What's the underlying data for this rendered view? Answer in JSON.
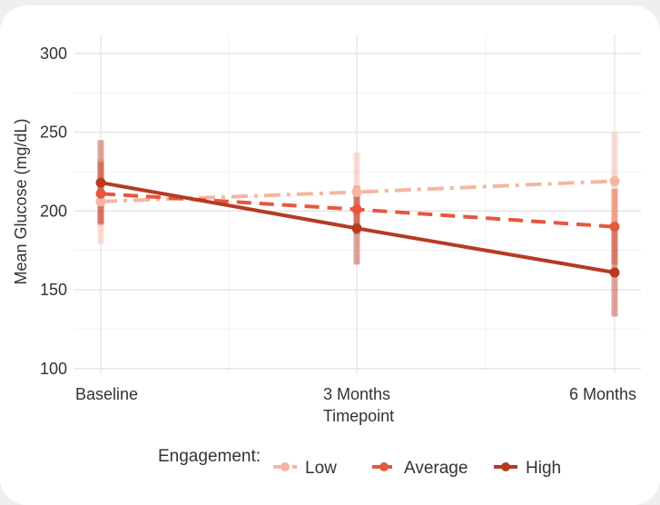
{
  "chart_data": {
    "type": "line",
    "xlabel": "Timepoint",
    "ylabel": "Mean Glucose (mg/dL)",
    "categories": [
      "Baseline",
      "3 Months",
      "6 Months"
    ],
    "ylim": [
      97,
      312
    ],
    "yticks": [
      100,
      150,
      200,
      250,
      300
    ],
    "grid": true,
    "legend_title": "Engagement:",
    "legend_position": "bottom",
    "series": [
      {
        "name": "Low",
        "color": "#f4b6a3",
        "line_style": "dashdot",
        "values": [
          206,
          212,
          219
        ],
        "error": [
          [
            179,
            233
          ],
          [
            189,
            237
          ],
          [
            188,
            250
          ]
        ]
      },
      {
        "name": "Average",
        "color": "#e6573f",
        "line_style": "dashed",
        "values": [
          211,
          201,
          190
        ],
        "error": [
          [
            191,
            231
          ],
          [
            185,
            216
          ],
          [
            166,
            214
          ]
        ]
      },
      {
        "name": "High",
        "color": "#b73a23",
        "line_style": "solid",
        "values": [
          218,
          189,
          161
        ],
        "error": [
          [
            192,
            245
          ],
          [
            166,
            211
          ],
          [
            133,
            188
          ]
        ]
      }
    ]
  }
}
